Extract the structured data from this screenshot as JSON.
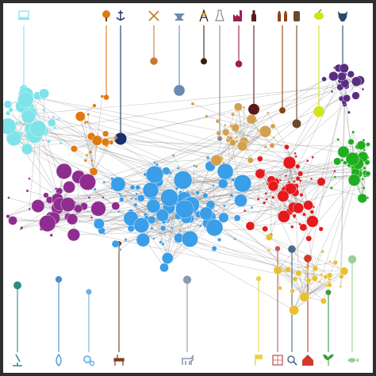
{
  "diagram": {
    "type": "network-graph",
    "background": "#ffffff",
    "frame_color": "#2e2e2e",
    "edge_color": "#9a9a9a",
    "top_categories": [
      {
        "icon": "computer-icon",
        "color": "#7fe3ea"
      },
      {
        "icon": "tree-icon",
        "color": "#e07a10"
      },
      {
        "icon": "anchor-icon",
        "color": "#1b2f6e"
      },
      {
        "icon": "tools-icon",
        "color": "#c47a2a"
      },
      {
        "icon": "anvil-icon",
        "color": "#6a8caf"
      },
      {
        "icon": "oil-derrick-icon",
        "color": "#3a1f10"
      },
      {
        "icon": "chemical-flask-icon",
        "color": "#8a8a8a"
      },
      {
        "icon": "factory-icon",
        "color": "#a01d4e"
      },
      {
        "icon": "bottle-icon",
        "color": "#5a1a1a"
      },
      {
        "icon": "beverage-bottles-icon",
        "color": "#8b4513"
      },
      {
        "icon": "canister-icon",
        "color": "#6a4a2a"
      },
      {
        "icon": "citrus-icon",
        "color": "#d4e21a"
      },
      {
        "icon": "animal-hide-icon",
        "color": "#2a4a6a"
      }
    ],
    "bottom_categories": [
      {
        "icon": "microscope-icon",
        "color": "#2e8b8b"
      },
      {
        "icon": "water-drop-icon",
        "color": "#4a8fd0"
      },
      {
        "icon": "gears-icon",
        "color": "#6ab0e0"
      },
      {
        "icon": "furniture-icon",
        "color": "#7a3e1a"
      },
      {
        "icon": "cattle-icon",
        "color": "#8a9ab0"
      },
      {
        "icon": "flag-icon",
        "color": "#e8d44a"
      },
      {
        "icon": "textile-icon",
        "color": "#c05a5a"
      },
      {
        "icon": "magnifier-icon",
        "color": "#4a6a8a"
      },
      {
        "icon": "house-icon",
        "color": "#d03a2a"
      },
      {
        "icon": "plant-icon",
        "color": "#3a9a3a"
      },
      {
        "icon": "fish-icon",
        "color": "#9acf9a"
      }
    ],
    "clusters": [
      {
        "name": "",
        "color": "#7fe3ea"
      },
      {
        "name": "",
        "color": "#8e2d8f"
      },
      {
        "name": "",
        "color": "#3a9ee8"
      },
      {
        "name": "",
        "color": "#e41a1c"
      },
      {
        "name": "",
        "color": "#1fae1f"
      },
      {
        "name": "",
        "color": "#e8c030"
      },
      {
        "name": "",
        "color": "#5a2d82"
      },
      {
        "name": "",
        "color": "#d4a050"
      },
      {
        "name": "",
        "color": "#e07a10"
      }
    ]
  }
}
